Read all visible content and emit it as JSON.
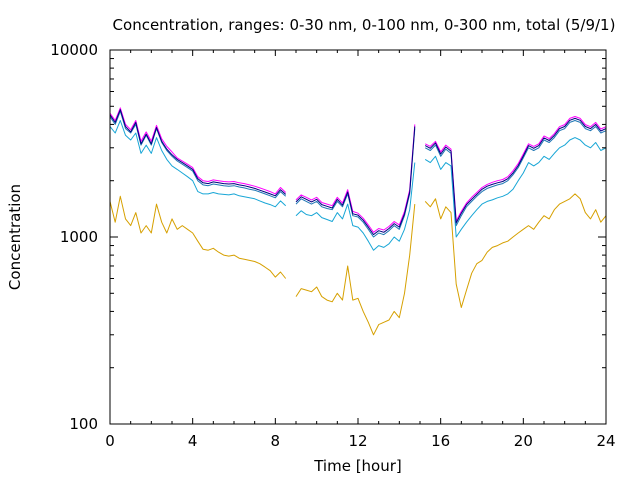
{
  "chart_data": {
    "type": "line",
    "title": "Concentration, ranges: 0-30 nm, 0-100 nm, 0-300 nm, total (5/9/1)",
    "xlabel": "Time [hour]",
    "ylabel": "Concentration",
    "xlim": [
      0,
      24
    ],
    "ylim": [
      100,
      10000
    ],
    "yscale": "log",
    "grid": false,
    "x_ticks": [
      0,
      4,
      8,
      12,
      16,
      20,
      24
    ],
    "x_tick_labels": [
      "0",
      "4",
      "8",
      "12",
      "16",
      "20",
      "24"
    ],
    "y_ticks": [
      100,
      1000,
      10000
    ],
    "y_tick_labels": [
      "100",
      "1000",
      "10000"
    ],
    "x": [
      0,
      0.25,
      0.5,
      0.75,
      1,
      1.25,
      1.5,
      1.75,
      2,
      2.25,
      2.5,
      2.75,
      3,
      3.25,
      3.5,
      3.75,
      4,
      4.25,
      4.5,
      4.75,
      5,
      5.25,
      5.5,
      5.75,
      6,
      6.25,
      6.5,
      6.75,
      7,
      7.25,
      7.5,
      7.75,
      8,
      8.25,
      8.5,
      8.75,
      9,
      9.25,
      9.5,
      9.75,
      10,
      10.25,
      10.5,
      10.75,
      11,
      11.25,
      11.5,
      11.75,
      12,
      12.25,
      12.5,
      12.75,
      13,
      13.25,
      13.5,
      13.75,
      14,
      14.25,
      14.5,
      14.75,
      15,
      15.25,
      15.5,
      15.75,
      16,
      16.25,
      16.5,
      16.75,
      17,
      17.25,
      17.5,
      17.75,
      18,
      18.25,
      18.5,
      18.75,
      19,
      19.25,
      19.5,
      19.75,
      20,
      20.25,
      20.5,
      20.75,
      21,
      21.25,
      21.5,
      21.75,
      22,
      22.25,
      22.5,
      22.75,
      23,
      23.25,
      23.5,
      23.75,
      24
    ],
    "series": [
      {
        "color": "#d6a000",
        "values": [
          1550,
          1200,
          1650,
          1250,
          1150,
          1350,
          1050,
          1150,
          1050,
          1500,
          1200,
          1050,
          1250,
          1100,
          1150,
          1100,
          1050,
          950,
          860,
          850,
          870,
          830,
          800,
          790,
          800,
          770,
          760,
          750,
          740,
          720,
          690,
          660,
          610,
          650,
          600,
          null,
          480,
          530,
          520,
          510,
          540,
          480,
          460,
          450,
          500,
          460,
          700,
          460,
          470,
          400,
          350,
          300,
          340,
          350,
          360,
          400,
          370,
          500,
          800,
          1500,
          null,
          1550,
          1450,
          1600,
          1250,
          1450,
          1350,
          560,
          420,
          520,
          640,
          720,
          750,
          830,
          880,
          900,
          930,
          950,
          1000,
          1050,
          1100,
          1150,
          1100,
          1200,
          1300,
          1250,
          1400,
          1500,
          1550,
          1600,
          1700,
          1600,
          1350,
          1250,
          1400,
          1200,
          1300
        ]
      },
      {
        "color": "#18a6d6",
        "values": [
          3900,
          3600,
          4200,
          3500,
          3300,
          3600,
          2800,
          3100,
          2800,
          3400,
          2900,
          2600,
          2400,
          2300,
          2200,
          2100,
          2000,
          1750,
          1700,
          1700,
          1730,
          1700,
          1690,
          1680,
          1700,
          1660,
          1640,
          1620,
          1600,
          1560,
          1520,
          1490,
          1450,
          1560,
          1470,
          null,
          1300,
          1380,
          1320,
          1300,
          1350,
          1270,
          1240,
          1210,
          1350,
          1250,
          1500,
          1150,
          1130,
          1050,
          950,
          850,
          900,
          880,
          920,
          1000,
          950,
          1100,
          1400,
          2500,
          null,
          2600,
          2500,
          2700,
          2300,
          2500,
          2400,
          1000,
          1100,
          1200,
          1300,
          1400,
          1500,
          1550,
          1580,
          1620,
          1650,
          1700,
          1800,
          2000,
          2200,
          2500,
          2400,
          2500,
          2700,
          2600,
          2800,
          3000,
          3100,
          3300,
          3400,
          3300,
          3100,
          3000,
          3200,
          2900,
          3000
        ]
      },
      {
        "color": "#1f77b4",
        "values": [
          4400,
          4000,
          4700,
          3800,
          3600,
          4000,
          3100,
          3500,
          3100,
          3800,
          3200,
          2900,
          2700,
          2550,
          2450,
          2350,
          2250,
          2000,
          1900,
          1880,
          1920,
          1900,
          1880,
          1870,
          1880,
          1850,
          1830,
          1800,
          1780,
          1740,
          1700,
          1660,
          1620,
          1750,
          1650,
          null,
          1500,
          1600,
          1550,
          1500,
          1550,
          1450,
          1420,
          1400,
          1550,
          1450,
          1700,
          1300,
          1280,
          1200,
          1100,
          1000,
          1050,
          1030,
          1080,
          1150,
          1100,
          1300,
          1700,
          3800,
          null,
          3000,
          2900,
          3100,
          2700,
          2950,
          2800,
          1150,
          1300,
          1450,
          1550,
          1650,
          1750,
          1820,
          1860,
          1900,
          1930,
          2000,
          2150,
          2350,
          2650,
          3000,
          2900,
          3000,
          3300,
          3200,
          3400,
          3700,
          3800,
          4100,
          4200,
          4100,
          3800,
          3700,
          3900,
          3600,
          3700
        ]
      },
      {
        "color": "#ff00ff",
        "values": [
          4600,
          4200,
          4900,
          4000,
          3750,
          4200,
          3250,
          3650,
          3250,
          3950,
          3350,
          3050,
          2850,
          2650,
          2550,
          2450,
          2350,
          2100,
          2000,
          1980,
          2020,
          2000,
          1980,
          1970,
          1980,
          1950,
          1930,
          1900,
          1870,
          1830,
          1790,
          1750,
          1700,
          1840,
          1730,
          null,
          1580,
          1680,
          1630,
          1580,
          1630,
          1530,
          1500,
          1470,
          1630,
          1520,
          1790,
          1370,
          1340,
          1260,
          1160,
          1060,
          1110,
          1090,
          1140,
          1210,
          1160,
          1370,
          1790,
          4000,
          null,
          3150,
          3050,
          3250,
          2850,
          3100,
          2950,
          1220,
          1370,
          1520,
          1630,
          1730,
          1840,
          1910,
          1960,
          2000,
          2030,
          2100,
          2260,
          2470,
          2780,
          3150,
          3050,
          3150,
          3470,
          3360,
          3570,
          3890,
          3990,
          4310,
          4410,
          4310,
          3990,
          3890,
          4100,
          3780,
          3890
        ]
      },
      {
        "color": "#000080",
        "values": [
          4500,
          4100,
          4800,
          3900,
          3650,
          4100,
          3150,
          3550,
          3150,
          3850,
          3250,
          2950,
          2750,
          2600,
          2500,
          2400,
          2300,
          2050,
          1950,
          1930,
          1970,
          1950,
          1930,
          1920,
          1930,
          1900,
          1880,
          1850,
          1820,
          1780,
          1740,
          1700,
          1660,
          1790,
          1690,
          null,
          1540,
          1640,
          1590,
          1540,
          1590,
          1490,
          1460,
          1430,
          1590,
          1480,
          1740,
          1330,
          1310,
          1230,
          1130,
          1030,
          1080,
          1060,
          1110,
          1180,
          1130,
          1330,
          1740,
          3900,
          null,
          3080,
          2980,
          3180,
          2780,
          3030,
          2880,
          1190,
          1340,
          1490,
          1590,
          1690,
          1800,
          1870,
          1910,
          1950,
          1980,
          2050,
          2200,
          2410,
          2710,
          3080,
          2980,
          3080,
          3390,
          3280,
          3490,
          3800,
          3900,
          4210,
          4310,
          4210,
          3900,
          3800,
          4000,
          3690,
          3800
        ]
      }
    ]
  }
}
